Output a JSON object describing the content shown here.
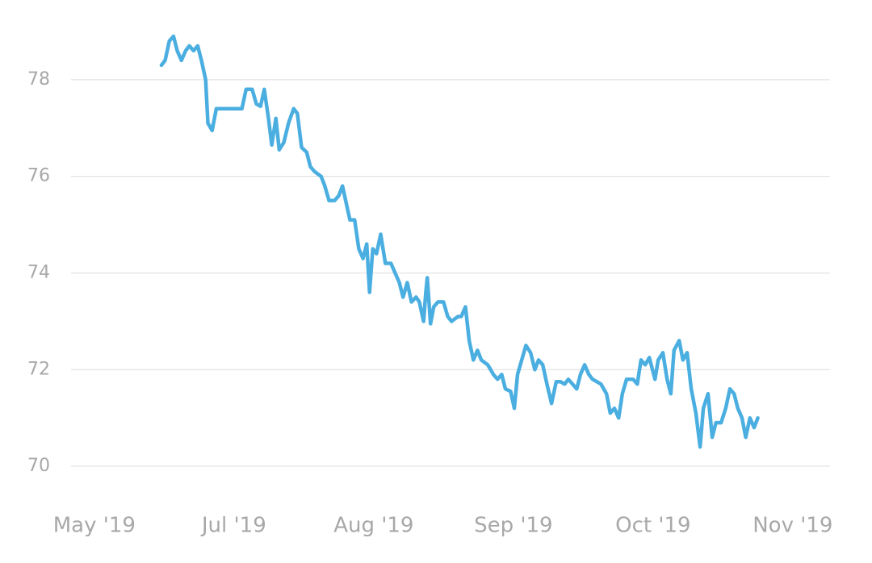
{
  "chart_data": {
    "type": "line",
    "x": [
      14.4,
      15.2,
      16.1,
      17.0,
      17.8,
      18.7,
      19.6,
      20.4,
      21.3,
      22.2,
      23.0,
      23.9,
      24.4,
      25.3,
      26.2,
      31.7,
      32.6,
      33.9,
      34.8,
      35.7,
      36.5,
      37.4,
      38.1,
      39.0,
      39.7,
      40.7,
      41.7,
      42.8,
      43.6,
      44.5,
      45.6,
      46.4,
      47.3,
      48.7,
      49.5,
      50.4,
      51.6,
      52.5,
      53.3,
      54.2,
      54.9,
      55.9,
      56.8,
      57.7,
      58.5,
      59.1,
      59.8,
      60.6,
      61.5,
      62.0,
      62.5,
      63.7,
      64.6,
      65.5,
      66.3,
      67.2,
      68.1,
      69.1,
      69.8,
      70.7,
      71.2,
      71.5,
      72.2,
      72.9,
      73.8,
      75.0,
      75.9,
      76.7,
      78.1,
      78.8,
      79.7,
      80.5,
      81.4,
      82.3,
      83.1,
      84.5,
      85.7,
      86.6,
      87.5,
      88.3,
      89.4,
      90.2,
      90.9,
      91.8,
      92.7,
      93.7,
      94.6,
      95.4,
      96.3,
      97.2,
      98.2,
      99.2,
      100.1,
      101.0,
      101.8,
      102.7,
      103.6,
      104.4,
      105.3,
      106.2,
      107.0,
      108.8,
      110.0,
      110.8,
      111.7,
      112.6,
      113.4,
      114.3,
      115.7,
      116.6,
      117.4,
      118.3,
      119.2,
      120.4,
      121.1,
      122.1,
      123.0,
      123.8,
      124.5,
      125.6,
      126.4,
      127.3,
      128.2,
      129.2,
      130.1,
      130.8,
      131.8,
      132.7,
      133.5,
      134.6,
      135.6,
      136.5,
      137.4,
      138.2,
      139.1,
      139.9,
      140.8,
      141.7,
      142.5
    ],
    "series": [
      {
        "color": "#4aaee0",
        "values": [
          78.3,
          78.4,
          78.8,
          78.9,
          78.6,
          78.4,
          78.6,
          78.7,
          78.6,
          78.7,
          78.4,
          78.0,
          77.1,
          76.95,
          77.4,
          77.4,
          77.8,
          77.8,
          77.5,
          77.45,
          77.8,
          77.2,
          76.65,
          77.2,
          76.55,
          76.7,
          77.1,
          77.4,
          77.3,
          76.6,
          76.5,
          76.2,
          76.1,
          76.0,
          75.8,
          75.5,
          75.5,
          75.6,
          75.8,
          75.4,
          75.1,
          75.1,
          74.5,
          74.3,
          74.6,
          73.6,
          74.5,
          74.4,
          74.8,
          74.5,
          74.2,
          74.2,
          74.0,
          73.8,
          73.5,
          73.8,
          73.4,
          73.5,
          73.4,
          73.0,
          73.6,
          73.9,
          72.95,
          73.3,
          73.4,
          73.4,
          73.1,
          73.0,
          73.1,
          73.1,
          73.3,
          72.6,
          72.2,
          72.4,
          72.2,
          72.1,
          71.9,
          71.8,
          71.9,
          71.6,
          71.55,
          71.2,
          71.9,
          72.2,
          72.5,
          72.35,
          72.0,
          72.2,
          72.1,
          71.7,
          71.3,
          71.75,
          71.75,
          71.7,
          71.8,
          71.7,
          71.6,
          71.9,
          72.1,
          71.9,
          71.8,
          71.7,
          71.5,
          71.1,
          71.2,
          71.0,
          71.5,
          71.8,
          71.8,
          71.7,
          72.2,
          72.1,
          72.25,
          71.8,
          72.2,
          72.35,
          71.8,
          71.5,
          72.4,
          72.6,
          72.2,
          72.35,
          71.6,
          71.1,
          70.4,
          71.2,
          71.5,
          70.6,
          70.9,
          70.9,
          71.2,
          71.6,
          71.5,
          71.2,
          71.0,
          70.6,
          71.0,
          70.8,
          71.0
        ]
      }
    ],
    "xlim": [
      -5,
      158
    ],
    "xticks": [
      {
        "value": 0,
        "label": "May '19"
      },
      {
        "value": 30,
        "label": "Jul '19"
      },
      {
        "value": 60,
        "label": "Aug '19"
      },
      {
        "value": 90,
        "label": "Sep '19"
      },
      {
        "value": 120,
        "label": "Oct '19"
      },
      {
        "value": 150,
        "label": "Nov '19"
      }
    ],
    "ylim": [
      69.4,
      79.4
    ],
    "yticks": [
      70,
      72,
      74,
      76,
      78
    ],
    "grid": true
  }
}
